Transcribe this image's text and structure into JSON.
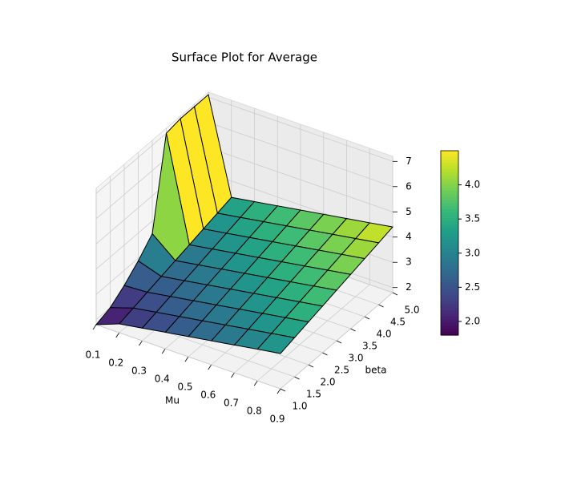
{
  "chart_data": {
    "type": "surface",
    "title": "Surface Plot for Average",
    "x_label": "Mu",
    "y_label": "beta",
    "x": [
      0.1,
      0.2,
      0.3,
      0.4,
      0.5,
      0.6,
      0.7,
      0.8,
      0.9
    ],
    "y": [
      1.0,
      1.5,
      2.0,
      2.5,
      3.0,
      3.5,
      4.0,
      4.5,
      5.0
    ],
    "z": [
      [
        1.8,
        2.0,
        2.4,
        2.9,
        3.5,
        7.0,
        7.1,
        7.1,
        7.1
      ],
      [
        2.15,
        2.3,
        2.45,
        2.6,
        2.75,
        2.9,
        3.05,
        3.2,
        3.35
      ],
      [
        2.3,
        2.45,
        2.6,
        2.75,
        2.9,
        3.05,
        3.2,
        3.35,
        3.5
      ],
      [
        2.45,
        2.6,
        2.75,
        2.9,
        3.05,
        3.2,
        3.35,
        3.5,
        3.65
      ],
      [
        2.6,
        2.75,
        2.9,
        3.05,
        3.2,
        3.35,
        3.5,
        3.65,
        3.8
      ],
      [
        2.75,
        2.9,
        3.05,
        3.2,
        3.35,
        3.5,
        3.65,
        3.8,
        3.95
      ],
      [
        2.9,
        3.05,
        3.2,
        3.35,
        3.5,
        3.65,
        3.8,
        3.95,
        4.1
      ],
      [
        3.05,
        3.2,
        3.35,
        3.5,
        3.65,
        3.8,
        3.95,
        4.1,
        4.25
      ],
      [
        3.2,
        3.35,
        3.5,
        3.65,
        3.8,
        3.95,
        4.1,
        4.25,
        4.4
      ]
    ],
    "xlim": [
      0.1,
      0.9
    ],
    "ylim": [
      1.0,
      5.0
    ],
    "zlim": [
      1.8,
      7.2
    ],
    "xticks": [
      0.1,
      0.2,
      0.3,
      0.4,
      0.5,
      0.6,
      0.7,
      0.8,
      0.9
    ],
    "yticks": [
      {
        "value": 1.0,
        "label": "1.0"
      },
      1.5,
      {
        "value": 2.0,
        "label": "2.0"
      },
      2.5,
      {
        "value": 3.0,
        "label": "3.0"
      },
      3.5,
      {
        "value": 4.0,
        "label": "4.0"
      },
      4.5,
      {
        "value": 5.0,
        "label": "5.0"
      }
    ],
    "zticks": [
      2,
      3,
      4,
      5,
      6,
      7
    ],
    "colormap": "viridis",
    "clim": [
      1.8,
      4.5
    ],
    "colorbar_ticks": [
      {
        "value": 2.0,
        "label": "2.0"
      },
      2.5,
      {
        "value": 3.0,
        "label": "3.0"
      },
      3.5,
      {
        "value": 4.0,
        "label": "4.0"
      }
    ],
    "grid": true
  }
}
